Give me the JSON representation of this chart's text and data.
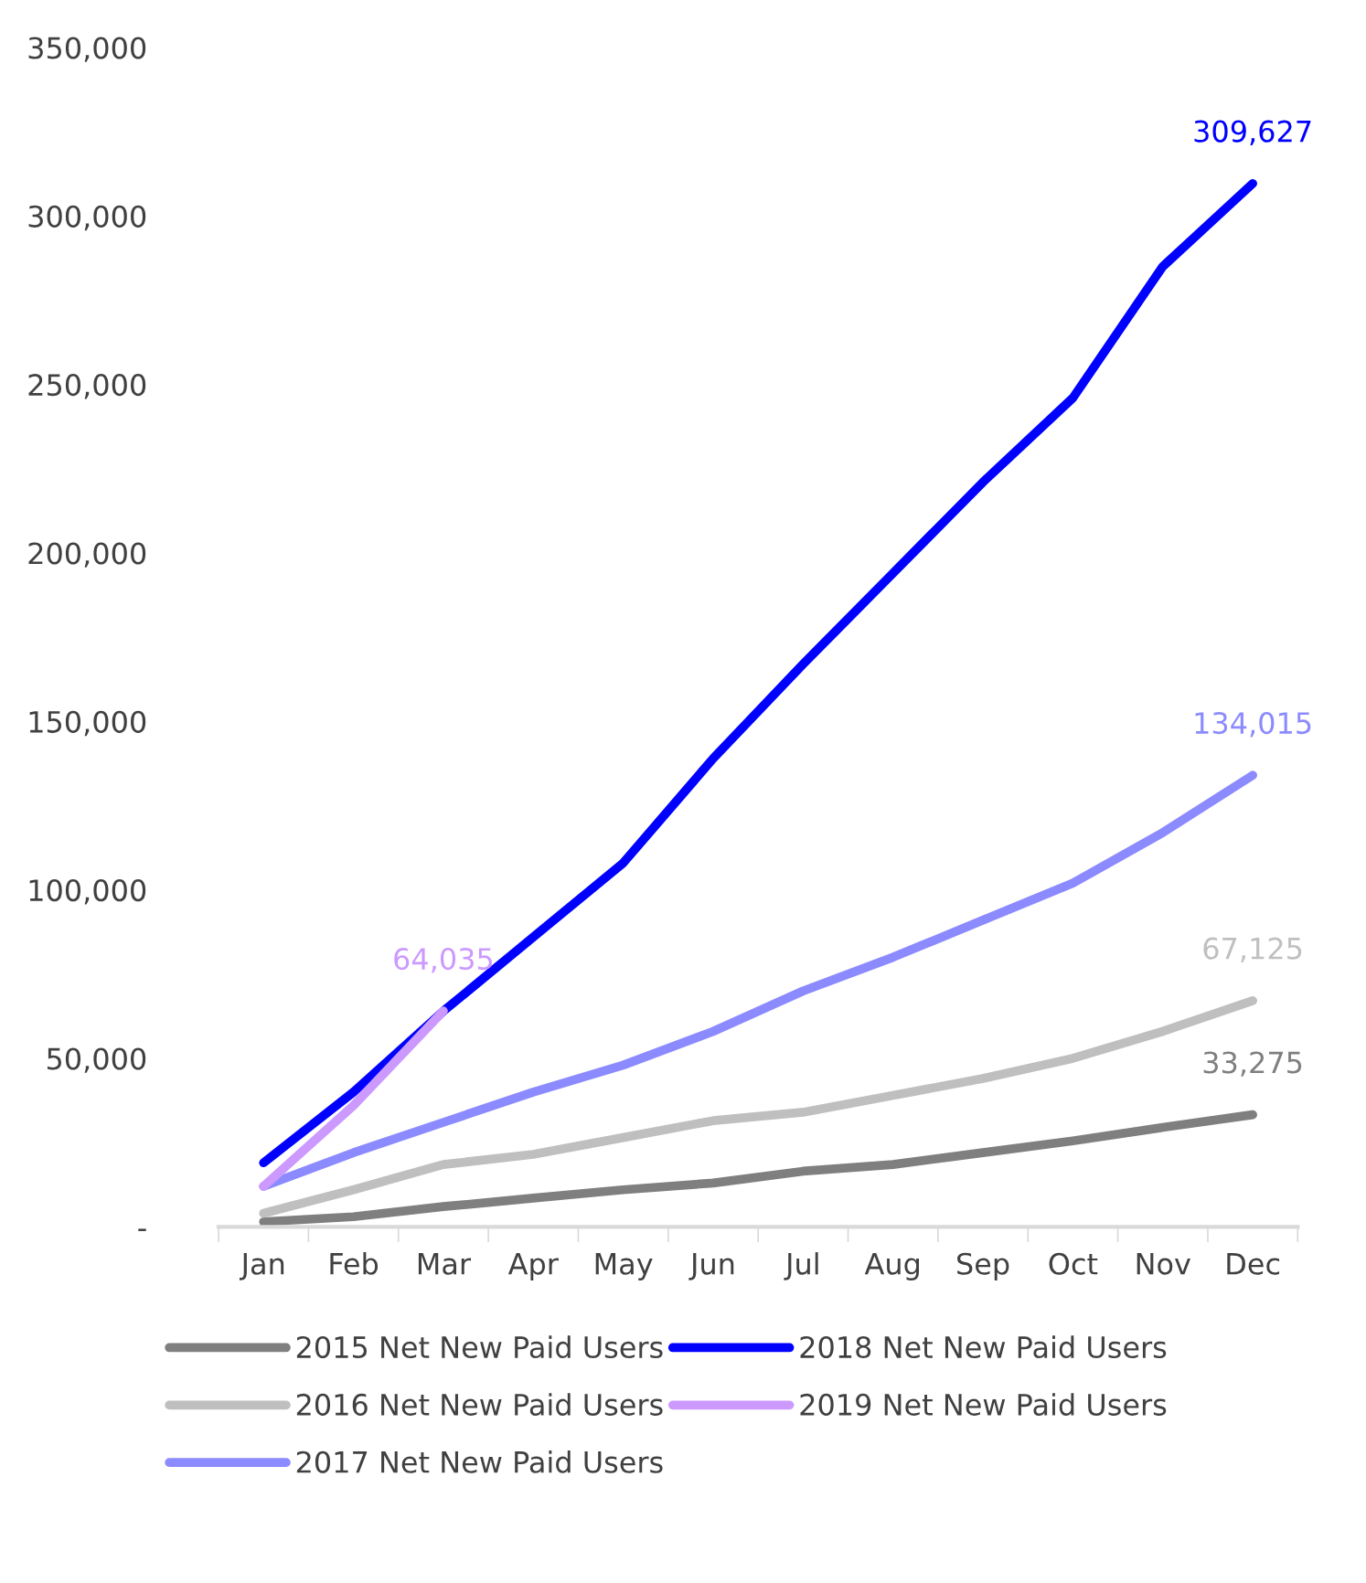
{
  "chart_data": {
    "type": "line",
    "categories": [
      "Jan",
      "Feb",
      "Mar",
      "Apr",
      "May",
      "Jun",
      "Jul",
      "Aug",
      "Sep",
      "Oct",
      "Nov",
      "Dec"
    ],
    "ylim": [
      0,
      350000
    ],
    "yticks": [
      {
        "value": 0,
        "label": "-"
      },
      {
        "value": 50000,
        "label": "50,000"
      },
      {
        "value": 100000,
        "label": "100,000"
      },
      {
        "value": 150000,
        "label": "150,000"
      },
      {
        "value": 200000,
        "label": "200,000"
      },
      {
        "value": 250000,
        "label": "250,000"
      },
      {
        "value": 300000,
        "label": "300,000"
      },
      {
        "value": 350000,
        "label": "350,000"
      }
    ],
    "grid": false,
    "legend": "bottom",
    "marker": "none",
    "line_style": "solid",
    "series": [
      {
        "name": "2015 Net New Paid Users",
        "color": "#7f7f7f",
        "values": [
          1500,
          3000,
          6000,
          8500,
          11000,
          13000,
          16500,
          18500,
          22000,
          25500,
          29500,
          33275
        ],
        "value_labels": [
          null,
          null,
          null,
          null,
          null,
          null,
          null,
          null,
          null,
          null,
          null,
          "33,275"
        ]
      },
      {
        "name": "2016 Net New Paid Users",
        "color": "#bfbfbf",
        "values": [
          4000,
          11000,
          18500,
          21500,
          26500,
          31500,
          34000,
          39000,
          44000,
          50000,
          58000,
          67125
        ],
        "value_labels": [
          null,
          null,
          null,
          null,
          null,
          null,
          null,
          null,
          null,
          null,
          null,
          "67,125"
        ]
      },
      {
        "name": "2017 Net New Paid Users",
        "color": "#8b8bff",
        "values": [
          12000,
          22000,
          31000,
          40000,
          48000,
          58000,
          70000,
          80000,
          91000,
          102000,
          117000,
          134015
        ],
        "value_labels": [
          null,
          null,
          null,
          null,
          null,
          null,
          null,
          null,
          null,
          null,
          null,
          "134,015"
        ]
      },
      {
        "name": "2018 Net New Paid Users",
        "color": "#0000ff",
        "values": [
          19000,
          40000,
          64000,
          86000,
          108000,
          139000,
          167000,
          194000,
          221000,
          246000,
          285000,
          309627
        ],
        "value_labels": [
          null,
          null,
          null,
          null,
          null,
          null,
          null,
          null,
          null,
          null,
          null,
          "309,627"
        ]
      },
      {
        "name": "2019 Net New Paid Users",
        "color": "#cc99ff",
        "values": [
          12000,
          36000,
          64035,
          null,
          null,
          null,
          null,
          null,
          null,
          null,
          null,
          null
        ],
        "value_labels": [
          null,
          null,
          "64,035",
          null,
          null,
          null,
          null,
          null,
          null,
          null,
          null,
          null
        ]
      }
    ]
  }
}
